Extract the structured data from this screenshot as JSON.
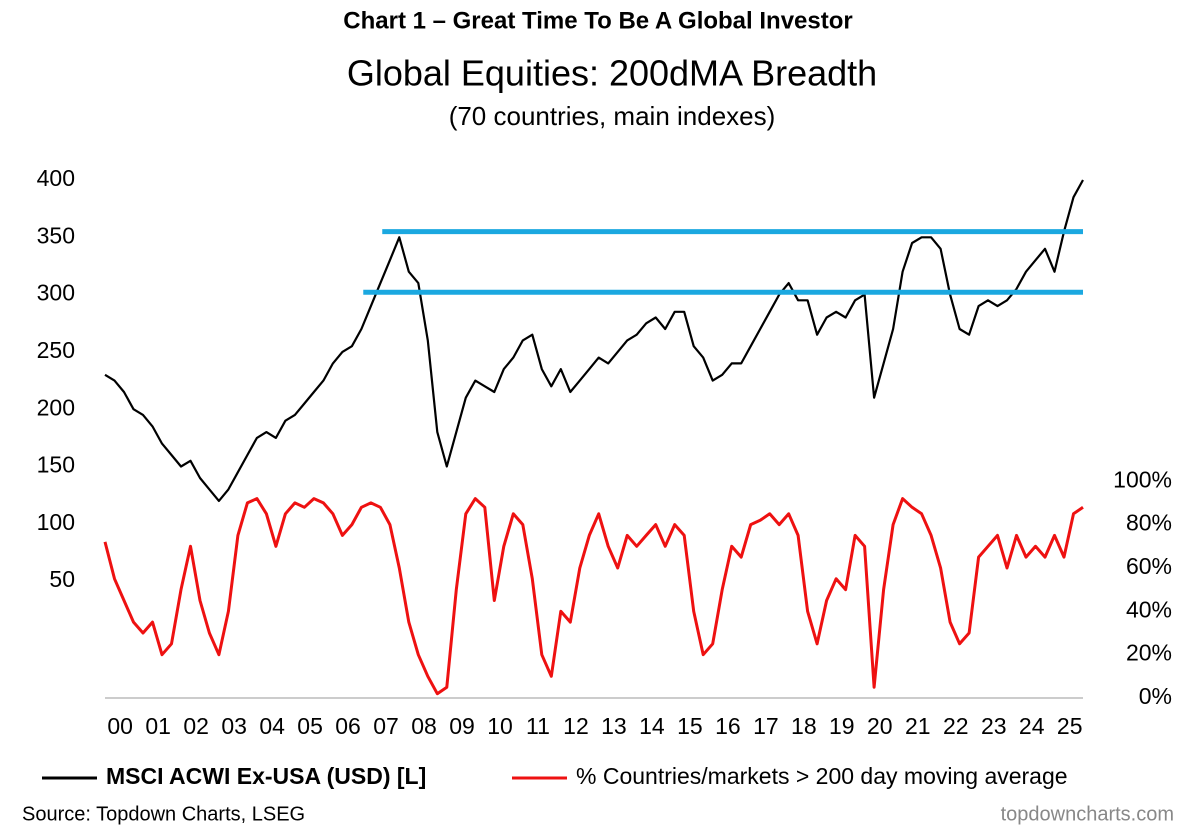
{
  "chart_data": {
    "type": "line",
    "chart_label": "Chart 1 –  Great Time To Be A Global Investor",
    "title": "Global Equities: 200dMA Breadth",
    "subtitle": "(70 countries, main indexes)",
    "source": "Source: Topdown Charts, LSEG",
    "watermark": "topdowncharts.com",
    "x": [
      2000,
      2000.25,
      2000.5,
      2000.75,
      2001,
      2001.25,
      2001.5,
      2001.75,
      2002,
      2002.25,
      2002.5,
      2002.75,
      2003,
      2003.25,
      2003.5,
      2003.75,
      2004,
      2004.25,
      2004.5,
      2004.75,
      2005,
      2005.25,
      2005.5,
      2005.75,
      2006,
      2006.25,
      2006.5,
      2006.75,
      2007,
      2007.25,
      2007.5,
      2007.75,
      2008,
      2008.25,
      2008.5,
      2008.75,
      2009,
      2009.25,
      2009.5,
      2009.75,
      2010,
      2010.25,
      2010.5,
      2010.75,
      2011,
      2011.25,
      2011.5,
      2011.75,
      2012,
      2012.25,
      2012.5,
      2012.75,
      2013,
      2013.25,
      2013.5,
      2013.75,
      2014,
      2014.25,
      2014.5,
      2014.75,
      2015,
      2015.25,
      2015.5,
      2015.75,
      2016,
      2016.25,
      2016.5,
      2016.75,
      2017,
      2017.25,
      2017.5,
      2017.75,
      2018,
      2018.25,
      2018.5,
      2018.75,
      2019,
      2019.25,
      2019.5,
      2019.75,
      2020,
      2020.25,
      2020.5,
      2020.75,
      2021,
      2021.25,
      2021.5,
      2021.75,
      2022,
      2022.25,
      2022.5,
      2022.75,
      2023,
      2023.25,
      2023.5,
      2023.75,
      2024,
      2024.25,
      2024.5,
      2024.75,
      2025,
      2025.25,
      2025.5,
      2025.75
    ],
    "series": [
      {
        "name": "MSCI ACWI Ex-USA (USD) [L]",
        "color": "#000000",
        "axis": "y",
        "values": [
          230,
          225,
          215,
          200,
          195,
          185,
          170,
          160,
          150,
          155,
          140,
          130,
          120,
          130,
          145,
          160,
          175,
          180,
          175,
          190,
          195,
          205,
          215,
          225,
          240,
          250,
          255,
          270,
          290,
          310,
          330,
          350,
          320,
          310,
          260,
          180,
          150,
          180,
          210,
          225,
          220,
          215,
          235,
          245,
          260,
          265,
          235,
          220,
          235,
          215,
          225,
          235,
          245,
          240,
          250,
          260,
          265,
          275,
          280,
          270,
          285,
          285,
          255,
          245,
          225,
          230,
          240,
          240,
          255,
          270,
          285,
          300,
          310,
          295,
          295,
          265,
          280,
          285,
          280,
          295,
          300,
          210,
          240,
          270,
          320,
          345,
          350,
          350,
          340,
          300,
          270,
          265,
          290,
          295,
          290,
          295,
          305,
          320,
          330,
          340,
          320,
          355,
          385,
          400
        ]
      },
      {
        "name": "% Countries/markets > 200 day moving average",
        "color": "#ee1111",
        "axis": "y2",
        "values": [
          72,
          55,
          45,
          35,
          30,
          35,
          20,
          25,
          50,
          70,
          45,
          30,
          20,
          40,
          75,
          90,
          92,
          85,
          70,
          85,
          90,
          88,
          92,
          90,
          85,
          75,
          80,
          88,
          90,
          88,
          80,
          60,
          35,
          20,
          10,
          2,
          5,
          50,
          85,
          92,
          88,
          45,
          70,
          85,
          80,
          55,
          20,
          10,
          40,
          35,
          60,
          75,
          85,
          70,
          60,
          75,
          70,
          75,
          80,
          70,
          80,
          75,
          40,
          20,
          25,
          50,
          70,
          65,
          80,
          82,
          85,
          80,
          85,
          75,
          40,
          25,
          45,
          55,
          50,
          75,
          70,
          5,
          50,
          80,
          92,
          88,
          85,
          75,
          60,
          35,
          25,
          30,
          65,
          70,
          75,
          60,
          75,
          65,
          70,
          65,
          75,
          65,
          85,
          88
        ]
      }
    ],
    "reference_lines": [
      {
        "y": 355,
        "x": [
          2007.3,
          2025.75
        ],
        "color": "#1ba8e0"
      },
      {
        "y": 302,
        "x": [
          2006.8,
          2025.75
        ],
        "color": "#1ba8e0"
      }
    ],
    "xlim": [
      2000,
      2025.75
    ],
    "xticks": [
      {
        "value": 2000.4,
        "label": "00"
      },
      {
        "value": 2001.4,
        "label": "01"
      },
      {
        "value": 2002.4,
        "label": "02"
      },
      {
        "value": 2003.4,
        "label": "03"
      },
      {
        "value": 2004.4,
        "label": "04"
      },
      {
        "value": 2005.4,
        "label": "05"
      },
      {
        "value": 2006.4,
        "label": "06"
      },
      {
        "value": 2007.4,
        "label": "07"
      },
      {
        "value": 2008.4,
        "label": "08"
      },
      {
        "value": 2009.4,
        "label": "09"
      },
      {
        "value": 2010.4,
        "label": "10"
      },
      {
        "value": 2011.4,
        "label": "11"
      },
      {
        "value": 2012.4,
        "label": "12"
      },
      {
        "value": 2013.4,
        "label": "13"
      },
      {
        "value": 2014.4,
        "label": "14"
      },
      {
        "value": 2015.4,
        "label": "15"
      },
      {
        "value": 2016.4,
        "label": "16"
      },
      {
        "value": 2017.4,
        "label": "17"
      },
      {
        "value": 2018.4,
        "label": "18"
      },
      {
        "value": 2019.4,
        "label": "19"
      },
      {
        "value": 2020.4,
        "label": "20"
      },
      {
        "value": 2021.4,
        "label": "21"
      },
      {
        "value": 2022.4,
        "label": "22"
      },
      {
        "value": 2023.4,
        "label": "23"
      },
      {
        "value": 2024.4,
        "label": "24"
      },
      {
        "value": 2025.4,
        "label": "25"
      }
    ],
    "ylim": [
      -52,
      400
    ],
    "yticks": [
      50,
      100,
      150,
      200,
      250,
      300,
      350,
      400
    ],
    "y2lim": [
      0,
      239
    ],
    "y2ticks": [
      {
        "value": 0,
        "label": "0%"
      },
      {
        "value": 20,
        "label": "20%"
      },
      {
        "value": 40,
        "label": "40%"
      },
      {
        "value": 60,
        "label": "60%"
      },
      {
        "value": 80,
        "label": "80%"
      },
      {
        "value": 100,
        "label": "100%"
      }
    ]
  }
}
